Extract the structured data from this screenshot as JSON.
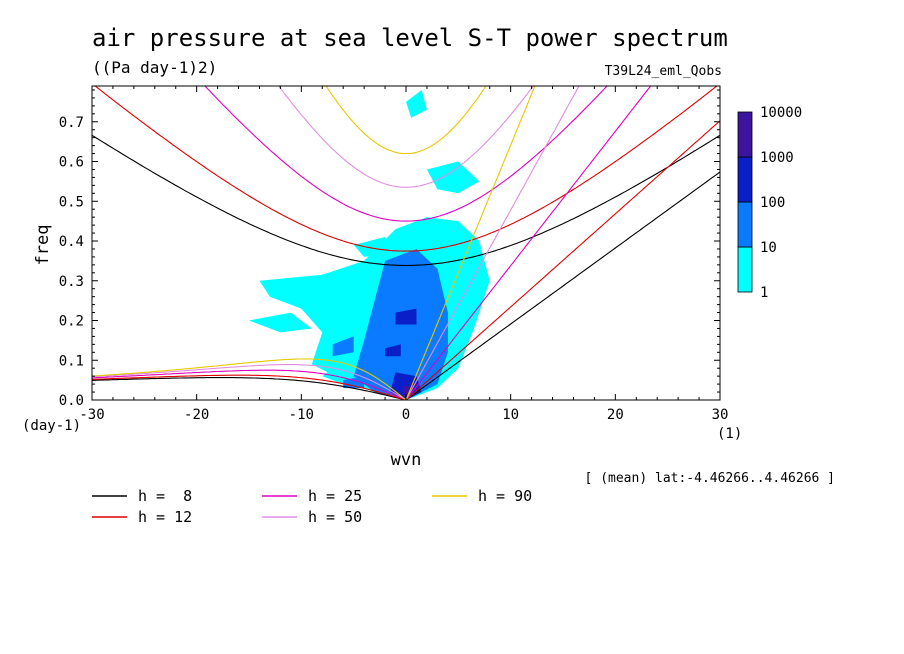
{
  "title": "air pressure at sea level S-T power spectrum",
  "units": "((Pa day-1)2)",
  "experiment": "T39L24_eml_Qobs",
  "footnote": "[ (mean) lat:-4.46266..4.46266 ]",
  "chart_data": {
    "type": "heatmap",
    "xlabel": "wvn",
    "ylabel": "freq",
    "x_unit": "(1)",
    "y_unit": "(day-1)",
    "xlim": [
      -30,
      30
    ],
    "ylim": [
      0,
      0.79
    ],
    "x_ticks": [
      -30,
      -20,
      -10,
      0,
      10,
      20,
      30
    ],
    "x_tick_labels": [
      "-30",
      "-20",
      "-10",
      "0",
      "10",
      "20",
      "30"
    ],
    "y_ticks": [
      0,
      0.1,
      0.2,
      0.3,
      0.4,
      0.5,
      0.6,
      0.7
    ],
    "y_tick_labels": [
      "0.0",
      "0.1",
      "0.2",
      "0.3",
      "0.4",
      "0.5",
      "0.6",
      "0.7"
    ],
    "colorbar": {
      "levels": [
        "1",
        "10",
        "100",
        "1000",
        "10000"
      ],
      "colors": [
        "#00ffff",
        "#0a7bff",
        "#0a1fc8",
        "#3c14a0"
      ]
    },
    "contours": [
      {
        "level": 1,
        "color": "#00ffff",
        "polygons": [
          [
            [
              -14,
              0.3
            ],
            [
              -8,
              0.315
            ],
            [
              -4,
              0.35
            ],
            [
              -1,
              0.43
            ],
            [
              2,
              0.46
            ],
            [
              5,
              0.45
            ],
            [
              7,
              0.4
            ],
            [
              8,
              0.3
            ],
            [
              6.5,
              0.18
            ],
            [
              5,
              0.08
            ],
            [
              3,
              0.03
            ],
            [
              0,
              0.0
            ],
            [
              -3,
              0.02
            ],
            [
              -6,
              0.05
            ],
            [
              -9,
              0.09
            ],
            [
              -8,
              0.17
            ],
            [
              -10,
              0.23
            ],
            [
              -13,
              0.26
            ]
          ],
          [
            [
              -15,
              0.2
            ],
            [
              -11,
              0.22
            ],
            [
              -9,
              0.18
            ],
            [
              -12,
              0.17
            ]
          ],
          [
            [
              2,
              0.58
            ],
            [
              5,
              0.6
            ],
            [
              7,
              0.55
            ],
            [
              5,
              0.52
            ],
            [
              3,
              0.53
            ]
          ],
          [
            [
              0,
              0.75
            ],
            [
              1.5,
              0.78
            ],
            [
              2,
              0.73
            ],
            [
              0.5,
              0.71
            ]
          ],
          [
            [
              -3,
              0.09
            ],
            [
              -6,
              0.1
            ],
            [
              -8,
              0.06
            ],
            [
              -5,
              0.03
            ]
          ],
          [
            [
              -5,
              0.39
            ],
            [
              -2,
              0.41
            ],
            [
              -1,
              0.37
            ],
            [
              -4,
              0.36
            ]
          ]
        ]
      },
      {
        "level": 10,
        "color": "#0a7bff",
        "polygons": [
          [
            [
              -2,
              0.35
            ],
            [
              1,
              0.38
            ],
            [
              3,
              0.33
            ],
            [
              4,
              0.22
            ],
            [
              4,
              0.12
            ],
            [
              3,
              0.04
            ],
            [
              0,
              0.0
            ],
            [
              -3,
              0.02
            ],
            [
              -5,
              0.06
            ],
            [
              -4,
              0.15
            ],
            [
              -3,
              0.25
            ]
          ],
          [
            [
              -7,
              0.14
            ],
            [
              -5,
              0.16
            ],
            [
              -5,
              0.12
            ],
            [
              -7,
              0.11
            ]
          ],
          [
            [
              -6,
              0.05
            ],
            [
              -4,
              0.06
            ],
            [
              -4,
              0.03
            ],
            [
              -6,
              0.03
            ]
          ]
        ]
      },
      {
        "level": 100,
        "color": "#0a1fc8",
        "polygons": [
          [
            [
              -1,
              0.07
            ],
            [
              1,
              0.06
            ],
            [
              1.5,
              0.02
            ],
            [
              0,
              0.0
            ],
            [
              -1.5,
              0.02
            ]
          ],
          [
            [
              -1,
              0.22
            ],
            [
              1,
              0.23
            ],
            [
              1,
              0.19
            ],
            [
              -1,
              0.19
            ]
          ],
          [
            [
              -2,
              0.13
            ],
            [
              -0.5,
              0.14
            ],
            [
              -0.5,
              0.11
            ],
            [
              -2,
              0.11
            ]
          ]
        ]
      },
      {
        "level": 1000,
        "color": "#3c14a0",
        "polygons": [
          [
            [
              -0.3,
              0.035
            ],
            [
              0.5,
              0.035
            ],
            [
              0.5,
              0.01
            ],
            [
              -0.3,
              0.01
            ]
          ]
        ]
      }
    ],
    "series": [
      {
        "name": "h =  8",
        "color": "#000000",
        "h": 8
      },
      {
        "name": "h = 12",
        "color": "#e00000",
        "h": 12
      },
      {
        "name": "h = 25",
        "color": "#e000c0",
        "h": 25
      },
      {
        "name": "h = 50",
        "color": "#e08ee0",
        "h": 50
      },
      {
        "name": "h = 90",
        "color": "#e8c800",
        "h": 90
      }
    ]
  }
}
